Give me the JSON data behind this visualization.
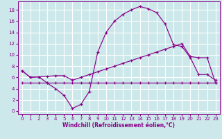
{
  "xlabel": "Windchill (Refroidissement éolien,°C)",
  "bg_color": "#cce8ea",
  "grid_color": "#ffffff",
  "line_color": "#880088",
  "x_ticks": [
    0,
    1,
    2,
    3,
    4,
    5,
    6,
    7,
    8,
    9,
    10,
    11,
    12,
    13,
    14,
    15,
    16,
    17,
    18,
    19,
    20,
    21,
    22,
    23
  ],
  "y_ticks": [
    0,
    2,
    4,
    6,
    8,
    10,
    12,
    14,
    16,
    18
  ],
  "ylim": [
    -0.5,
    19.5
  ],
  "xlim": [
    -0.5,
    23.5
  ],
  "line1_x": [
    0,
    1,
    2,
    3,
    4,
    5,
    6,
    7,
    8,
    9,
    10,
    11,
    12,
    13,
    14,
    15,
    16,
    17,
    18,
    19,
    20,
    21,
    22,
    23
  ],
  "line1_y": [
    7.2,
    6.0,
    6.1,
    5.0,
    4.0,
    2.8,
    0.5,
    1.2,
    3.5,
    10.5,
    14.0,
    16.0,
    17.2,
    18.0,
    18.6,
    18.2,
    17.5,
    15.5,
    11.8,
    11.5,
    9.5,
    6.5,
    6.5,
    5.5
  ],
  "line2_x": [
    0,
    1,
    2,
    3,
    4,
    5,
    6,
    7,
    8,
    9,
    10,
    11,
    12,
    13,
    14,
    15,
    16,
    17,
    18,
    19,
    20,
    21,
    22,
    23
  ],
  "line2_y": [
    7.2,
    6.0,
    6.1,
    6.2,
    6.3,
    6.3,
    5.5,
    6.0,
    6.5,
    7.0,
    7.5,
    8.0,
    8.5,
    9.0,
    9.5,
    10.0,
    10.5,
    11.0,
    11.5,
    12.0,
    9.7,
    9.5,
    9.5,
    5.0
  ],
  "line3_x": [
    0,
    1,
    2,
    3,
    4,
    5,
    6,
    7,
    8,
    9,
    10,
    11,
    12,
    13,
    14,
    15,
    16,
    17,
    18,
    19,
    20,
    21,
    22,
    23
  ],
  "line3_y": [
    5.0,
    5.0,
    5.0,
    5.0,
    5.0,
    5.0,
    5.0,
    5.0,
    5.0,
    5.0,
    5.0,
    5.0,
    5.0,
    5.0,
    5.0,
    5.0,
    5.0,
    5.0,
    5.0,
    5.0,
    5.0,
    5.0,
    5.0,
    5.0
  ],
  "tick_fontsize": 5,
  "xlabel_fontsize": 5.5
}
